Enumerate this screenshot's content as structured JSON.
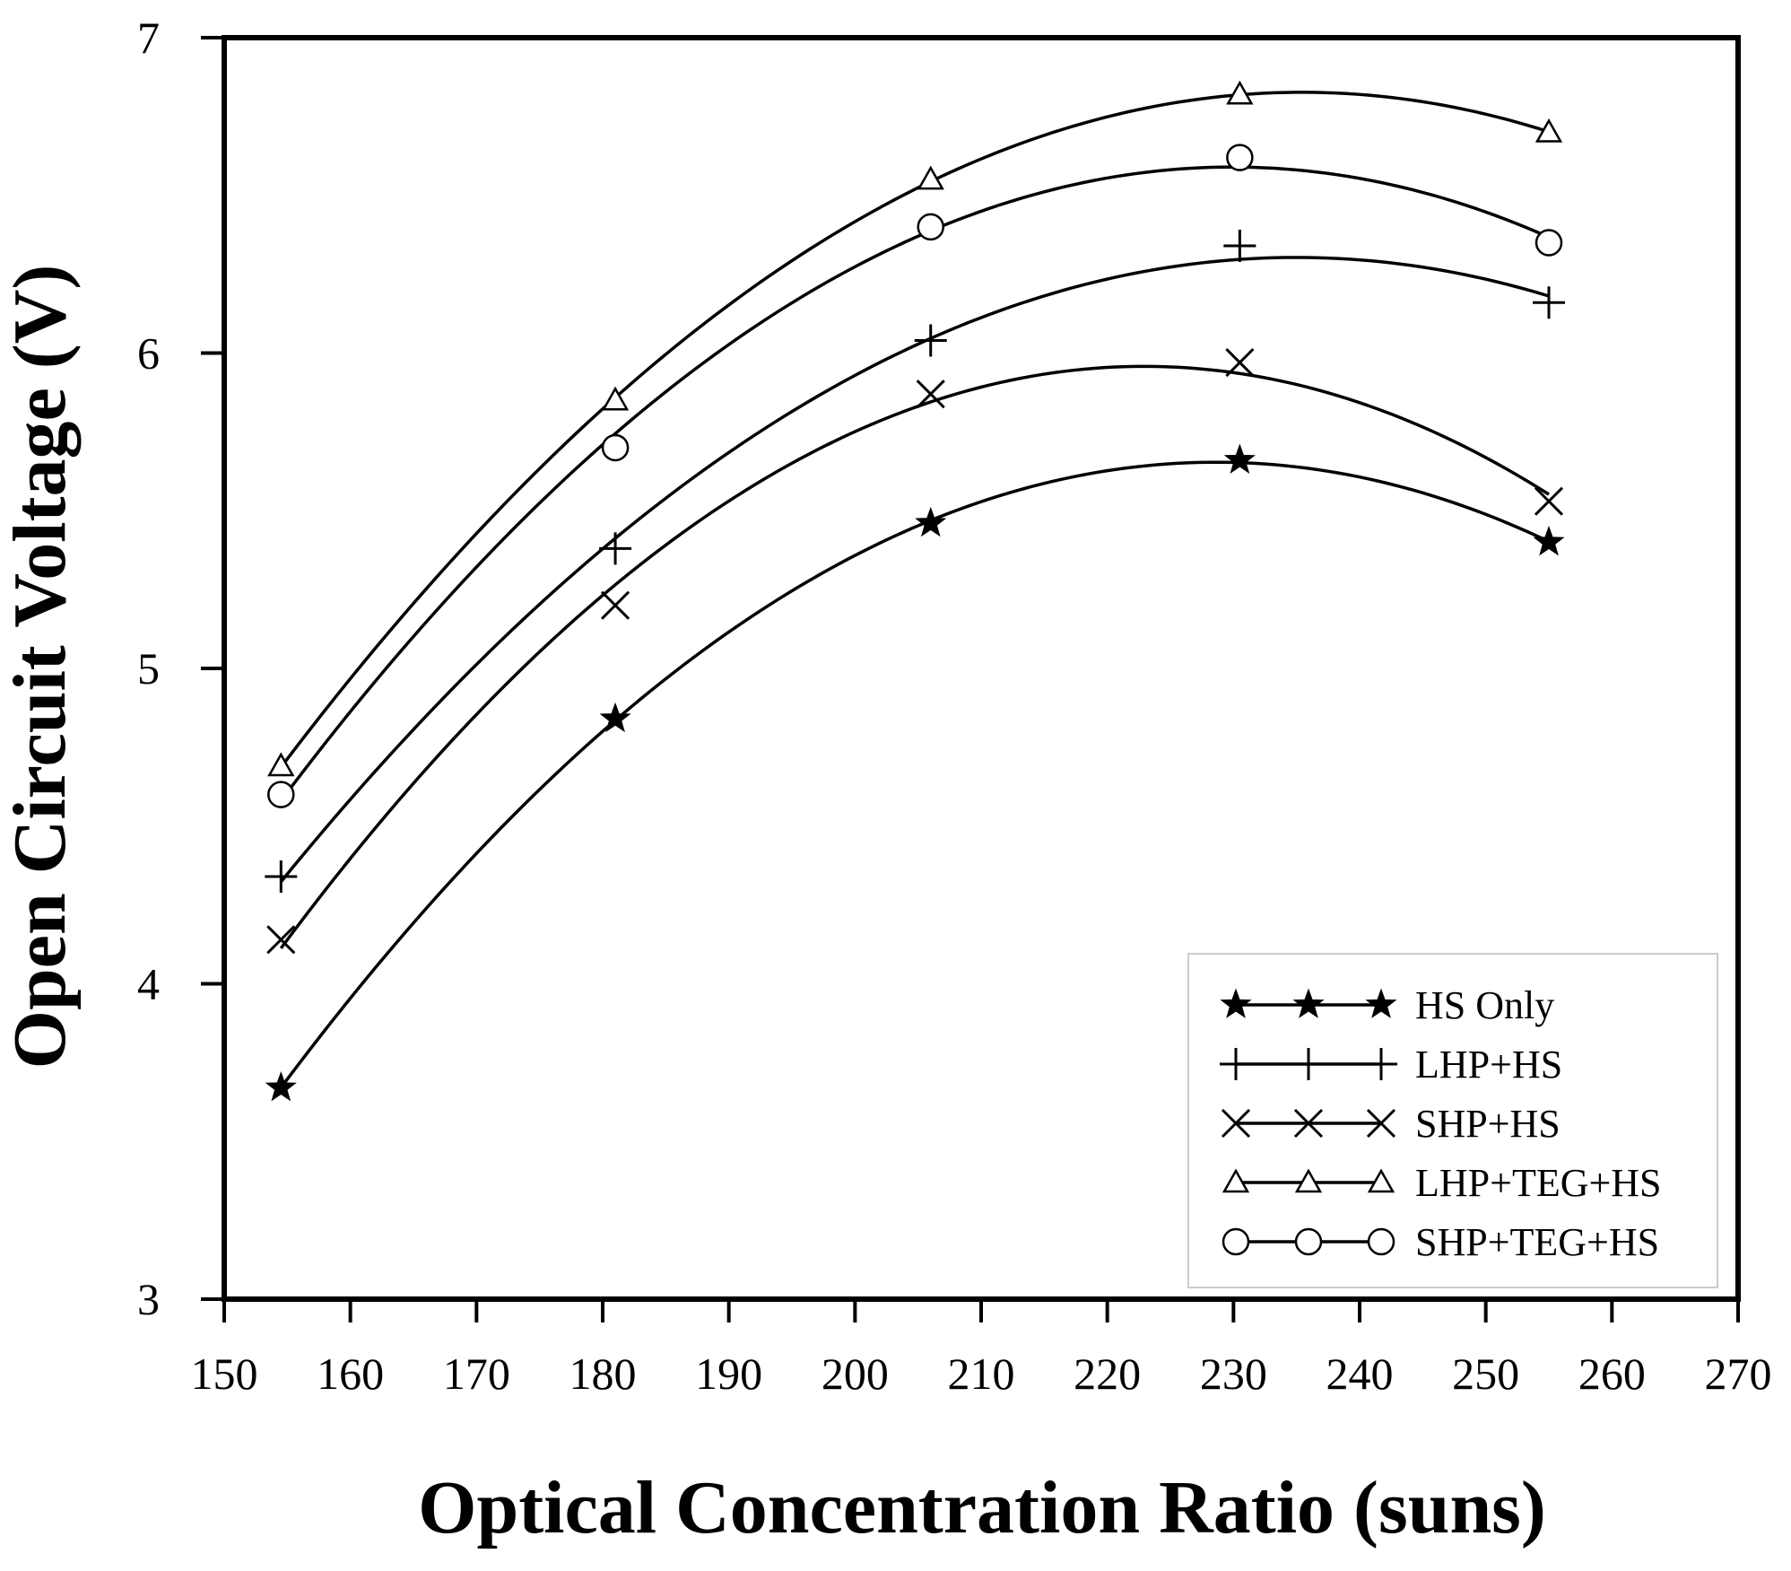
{
  "chart_data": {
    "type": "line",
    "title": "",
    "xlabel": "Optical Concentration Ratio (suns)",
    "ylabel": "Open Circuit Voltage (V)",
    "xlim": [
      150,
      270
    ],
    "ylim": [
      3,
      7
    ],
    "xticks": [
      150,
      160,
      170,
      180,
      190,
      200,
      210,
      220,
      230,
      240,
      250,
      260,
      270
    ],
    "yticks": [
      3,
      4,
      5,
      6,
      7
    ],
    "x": [
      154.5,
      181,
      206,
      230.5,
      255
    ],
    "grid": false,
    "legend_position": "bottom-right",
    "series": [
      {
        "name": "HS Only",
        "marker": "star",
        "values": [
          3.67,
          4.84,
          5.46,
          5.66,
          5.4
        ]
      },
      {
        "name": "LHP+HS",
        "marker": "plus",
        "values": [
          4.34,
          5.38,
          6.04,
          6.34,
          6.16
        ]
      },
      {
        "name": "SHP+HS",
        "marker": "x",
        "values": [
          4.14,
          5.2,
          5.87,
          5.97,
          5.53
        ]
      },
      {
        "name": "LHP+TEG+HS",
        "marker": "triangle",
        "values": [
          4.69,
          5.85,
          6.55,
          6.82,
          6.7
        ]
      },
      {
        "name": "SHP+TEG+HS",
        "marker": "circle",
        "values": [
          4.6,
          5.7,
          6.4,
          6.62,
          6.35
        ]
      }
    ]
  }
}
